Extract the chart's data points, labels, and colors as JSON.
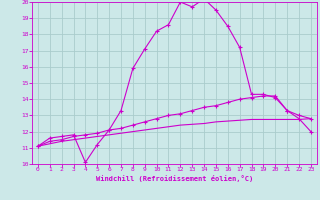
{
  "xlabel": "Windchill (Refroidissement éolien,°C)",
  "background_color": "#cce8e8",
  "grid_color": "#aacccc",
  "line_color": "#cc00cc",
  "xlim": [
    -0.5,
    23.5
  ],
  "ylim": [
    10,
    20
  ],
  "xticks": [
    0,
    1,
    2,
    3,
    4,
    5,
    6,
    7,
    8,
    9,
    10,
    11,
    12,
    13,
    14,
    15,
    16,
    17,
    18,
    19,
    20,
    21,
    22,
    23
  ],
  "yticks": [
    10,
    11,
    12,
    13,
    14,
    15,
    16,
    17,
    18,
    19,
    20
  ],
  "series1_x": [
    0,
    1,
    2,
    3,
    4,
    5,
    6,
    7,
    8,
    9,
    10,
    11,
    12,
    13,
    14,
    15,
    16,
    17,
    18,
    19,
    20,
    21,
    22,
    23
  ],
  "series1_y": [
    11.1,
    11.6,
    11.7,
    11.8,
    10.1,
    11.2,
    12.1,
    13.3,
    15.9,
    17.1,
    18.2,
    18.6,
    20.0,
    19.7,
    20.2,
    19.5,
    18.5,
    17.2,
    14.3,
    14.3,
    14.1,
    13.3,
    12.8,
    12.0
  ],
  "series2_x": [
    0,
    1,
    2,
    3,
    4,
    5,
    6,
    7,
    8,
    9,
    10,
    11,
    12,
    13,
    14,
    15,
    16,
    17,
    18,
    19,
    20,
    21,
    22,
    23
  ],
  "series2_y": [
    11.1,
    11.4,
    11.5,
    11.7,
    11.8,
    11.9,
    12.1,
    12.2,
    12.4,
    12.6,
    12.8,
    13.0,
    13.1,
    13.3,
    13.5,
    13.6,
    13.8,
    14.0,
    14.1,
    14.2,
    14.2,
    13.3,
    13.0,
    12.8
  ],
  "series3_x": [
    0,
    1,
    2,
    3,
    4,
    5,
    6,
    7,
    8,
    9,
    10,
    11,
    12,
    13,
    14,
    15,
    16,
    17,
    18,
    19,
    20,
    21,
    22,
    23
  ],
  "series3_y": [
    11.1,
    11.25,
    11.4,
    11.5,
    11.6,
    11.7,
    11.8,
    11.9,
    12.0,
    12.1,
    12.2,
    12.3,
    12.4,
    12.45,
    12.5,
    12.6,
    12.65,
    12.7,
    12.75,
    12.75,
    12.75,
    12.75,
    12.75,
    12.8
  ]
}
